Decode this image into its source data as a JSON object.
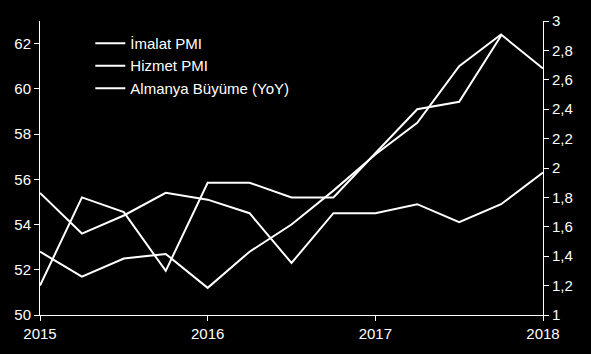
{
  "chart_data": {
    "type": "line",
    "x": [
      2015,
      2015.25,
      2015.5,
      2015.75,
      2016,
      2016.25,
      2016.5,
      2016.75,
      2017,
      2017.25,
      2017.5,
      2017.75,
      2018
    ],
    "xlim": [
      2015,
      2018
    ],
    "xticks": [
      2015,
      2016,
      2017,
      2018
    ],
    "ylim": [
      50,
      63
    ],
    "yticks": [
      50,
      52,
      54,
      56,
      58,
      60,
      62
    ],
    "y2lim": [
      1,
      3
    ],
    "y2ticks": [
      1,
      {
        "value": 1.2,
        "label": "1,2"
      },
      {
        "value": 1.4,
        "label": "1,4"
      },
      {
        "value": 1.6,
        "label": "1,6"
      },
      {
        "value": 1.8,
        "label": "1,8"
      },
      2,
      {
        "value": 2.2,
        "label": "2,2"
      },
      {
        "value": 2.4,
        "label": "2,4"
      },
      {
        "value": 2.6,
        "label": "2,6"
      },
      {
        "value": 2.8,
        "label": "2,8"
      },
      3
    ],
    "grid": false,
    "legend": "upper left",
    "series": [
      {
        "name": "İmalat PMI",
        "color": "#ffffff",
        "values": [
          52.8,
          51.7,
          52.5,
          52.7,
          51.2,
          52.8,
          54.0,
          55.5,
          57.1,
          58.5,
          61.0,
          62.4,
          60.9
        ]
      },
      {
        "name": "Hizmet PMI",
        "color": "#ffffff",
        "values": [
          55.4,
          53.6,
          54.4,
          55.4,
          55.1,
          54.5,
          52.3,
          54.5,
          54.5,
          54.9,
          54.1,
          54.9,
          56.3
        ]
      },
      {
        "name": "Almanya Büyüme (YoY)",
        "color": "#ffffff",
        "axis": "y2",
        "values": [
          1.2,
          1.8,
          1.7,
          1.3,
          1.9,
          1.9,
          1.8,
          1.8,
          2.1,
          2.4,
          2.45,
          2.9,
          null
        ]
      }
    ]
  }
}
